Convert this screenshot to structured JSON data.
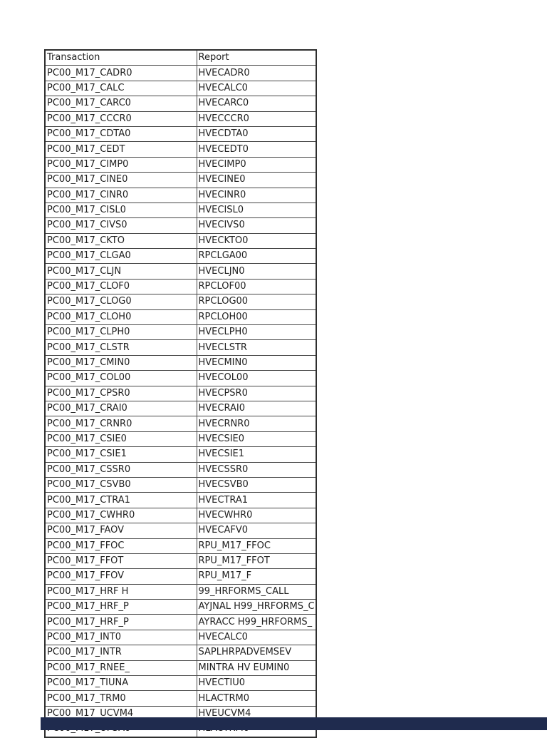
{
  "page": {
    "background": "#ffffff",
    "text_color": "#212121",
    "border_color": "#474747"
  },
  "table": {
    "headers": [
      "Transaction",
      "Report"
    ],
    "rows": [
      [
        "PC00_M17_CADR0",
        "HVECADR0"
      ],
      [
        "PC00_M17_CALC",
        "HVECALC0"
      ],
      [
        "PC00_M17_CARC0",
        "HVECARC0"
      ],
      [
        "PC00_M17_CCCR0",
        "HVECCCR0"
      ],
      [
        "PC00_M17_CDTA0",
        "HVECDTA0"
      ],
      [
        "PC00_M17_CEDT",
        "HVECEDT0"
      ],
      [
        "PC00_M17_CIMP0",
        "HVECIMP0"
      ],
      [
        "PC00_M17_CINE0",
        "HVECINE0"
      ],
      [
        "PC00_M17_CINR0",
        "HVECINR0"
      ],
      [
        "PC00_M17_CISL0",
        "HVECISL0"
      ],
      [
        "PC00_M17_CIVS0",
        "HVECIVS0"
      ],
      [
        "PC00_M17_CKTO",
        "HVECKTO0"
      ],
      [
        "PC00_M17_CLGA0",
        "RPCLGA00"
      ],
      [
        "PC00_M17_CLJN",
        "HVECLJN0"
      ],
      [
        "PC00_M17_CLOF0",
        "RPCLOF00"
      ],
      [
        "PC00_M17_CLOG0",
        "RPCLOG00"
      ],
      [
        "PC00_M17_CLOH0",
        "RPCLOH00"
      ],
      [
        "PC00_M17_CLPH0",
        "HVECLPH0"
      ],
      [
        "PC00_M17_CLSTR",
        "HVECLSTR"
      ],
      [
        "PC00_M17_CMIN0",
        "HVECMIN0"
      ],
      [
        "PC00_M17_COL00",
        "HVECOL00"
      ],
      [
        "PC00_M17_CPSR0",
        "HVECPSR0"
      ],
      [
        "PC00_M17_CRAI0",
        "HVECRAI0"
      ],
      [
        "PC00_M17_CRNR0",
        "HVECRNR0"
      ],
      [
        "PC00_M17_CSIE0",
        "HVECSIE0"
      ],
      [
        "PC00_M17_CSIE1",
        "HVECSIE1"
      ],
      [
        "PC00_M17_CSSR0",
        "HVECSSR0"
      ],
      [
        "PC00_M17_CSVB0",
        "HVECSVB0"
      ],
      [
        "PC00_M17_CTRA1",
        "HVECTRA1"
      ],
      [
        "PC00_M17_CWHR0",
        "HVECWHR0"
      ],
      [
        "PC00_M17_FAOV",
        "HVECAFV0"
      ],
      [
        "PC00_M17_FFOC",
        "RPU_M17_FFOC"
      ],
      [
        "PC00_M17_FFOT",
        "RPU_M17_FFOT"
      ],
      [
        "PC00_M17_FFOV",
        "RPU_M17_F"
      ],
      [
        "PC00_M17_HRF H",
        "99_HRFORMS_CALL"
      ],
      [
        "PC00_M17_HRF_P",
        "AYJNAL H99_HRFORMS_C"
      ],
      [
        "PC00_M17_HRF_P",
        "AYRACC H99_HRFORMS_"
      ],
      [
        "PC00_M17_INT0",
        "HVECALC0"
      ],
      [
        "PC00_M17_INTR",
        "SAPLHRPADVEMSEV"
      ],
      [
        "PC00_M17_RNEE_",
        "MINTRA HV EUMIN0"
      ],
      [
        "PC00_M17_TIUNA",
        "HVECTIU0"
      ],
      [
        "PC00_M17_TRM0",
        "HLACTRM0"
      ],
      [
        "PC00_M17_UCVM4",
        "HVEUCVM4"
      ],
      [
        "PC00_M17_UPSA0",
        "HLACTRM0"
      ]
    ]
  },
  "footer_bar": {
    "color": "#1f2b4e"
  }
}
